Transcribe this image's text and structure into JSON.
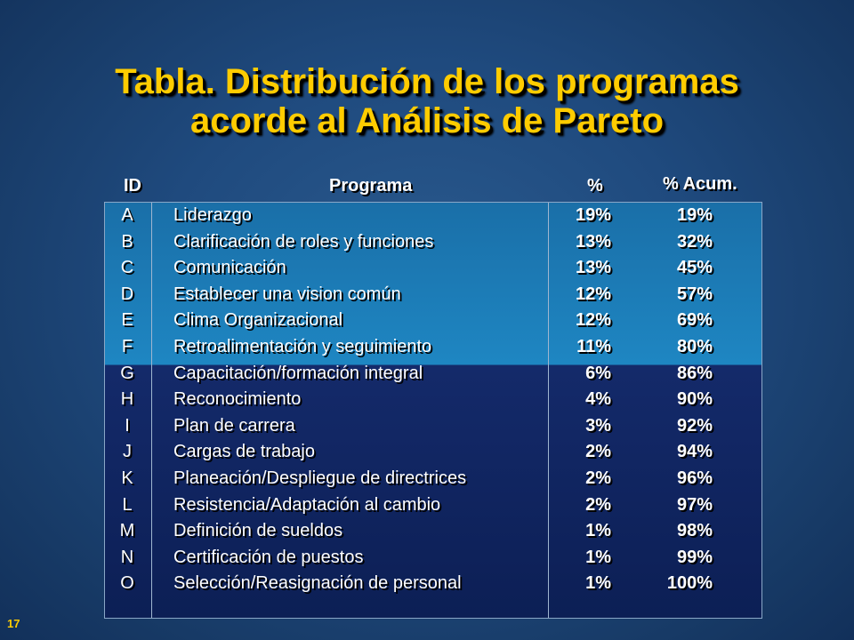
{
  "title": {
    "line1": "Tabla.  Distribución de los programas",
    "line2": "acorde al  Análisis de Pareto"
  },
  "headers": {
    "id": "ID",
    "programa": "Programa",
    "pct": "%",
    "acum": "% Acum."
  },
  "rows": [
    {
      "id": "A",
      "programa": "Liderazgo",
      "pct": "19%",
      "acum": "19%"
    },
    {
      "id": "B",
      "programa": "Clarificación de roles y funciones",
      "pct": "13%",
      "acum": "32%"
    },
    {
      "id": "C",
      "programa": "Comunicación",
      "pct": "13%",
      "acum": "45%"
    },
    {
      "id": "D",
      "programa": "Establecer una vision común",
      "pct": "12%",
      "acum": "57%"
    },
    {
      "id": "E",
      "programa": "Clima Organizacional",
      "pct": "12%",
      "acum": "69%"
    },
    {
      "id": "F",
      "programa": "Retroalimentación y seguimiento",
      "pct": "11%",
      "acum": "80%"
    },
    {
      "id": "G",
      "programa": "Capacitación/formación integral",
      "pct": "6%",
      "acum": "86%"
    },
    {
      "id": "H",
      "programa": "Reconocimiento",
      "pct": "4%",
      "acum": "90%"
    },
    {
      "id": "I",
      "programa": "Plan de carrera",
      "pct": "3%",
      "acum": "92%"
    },
    {
      "id": "J",
      "programa": "Cargas de trabajo",
      "pct": "2%",
      "acum": "94%"
    },
    {
      "id": "K",
      "programa": "Planeación/Despliegue de directrices",
      "pct": "2%",
      "acum": "96%"
    },
    {
      "id": "L",
      "programa": "Resistencia/Adaptación al cambio",
      "pct": "2%",
      "acum": "97%"
    },
    {
      "id": "M",
      "programa": "Definición de sueldos",
      "pct": "1%",
      "acum": "98%"
    },
    {
      "id": "N",
      "programa": "Certificación de puestos",
      "pct": "1%",
      "acum": "99%"
    },
    {
      "id": "O",
      "programa": "Selección/Reasignación de personal",
      "pct": "1%",
      "acum": "100%"
    }
  ],
  "page_number": "17",
  "colors": {
    "title": "#ffcc00",
    "highlight_band": "#1e86c2",
    "lower_band": "#0c1f55"
  }
}
